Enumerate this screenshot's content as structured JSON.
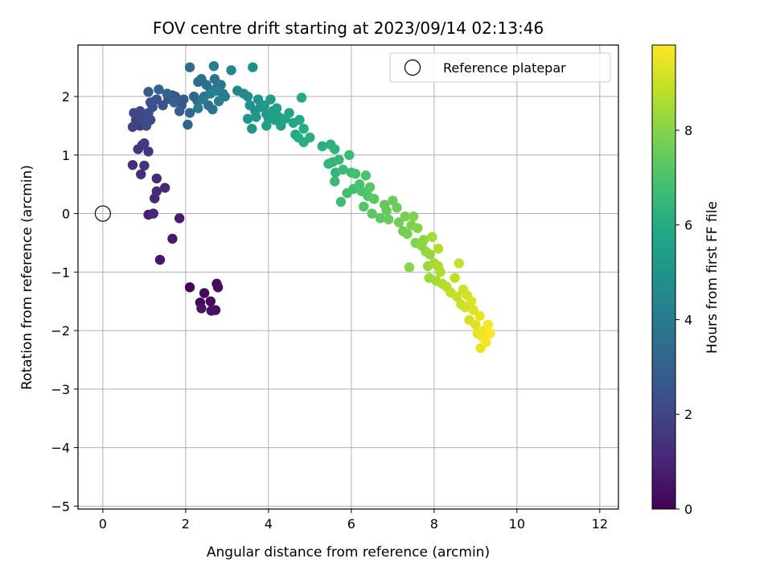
{
  "chart_data": {
    "type": "scatter",
    "title": "FOV centre drift starting at 2023/09/14 02:13:46",
    "xlabel": "Angular distance from reference (arcmin)",
    "ylabel": "Rotation from reference (arcmin)",
    "xlim": [
      -0.6,
      12.45
    ],
    "ylim": [
      -5.05,
      2.88
    ],
    "xticks": [
      0,
      2,
      4,
      6,
      8,
      10,
      12
    ],
    "yticks": [
      -5,
      -4,
      -3,
      -2,
      -1,
      0,
      1,
      2
    ],
    "grid": true,
    "legend": {
      "position": "top-right",
      "entries": [
        "Reference platepar"
      ]
    },
    "reference_point": {
      "x": 0,
      "y": 0,
      "label": "Reference platepar",
      "marker": "open-circle"
    },
    "colorbar": {
      "label": "Hours from first FF file",
      "range": [
        0,
        9.8
      ],
      "ticks": [
        0,
        2,
        4,
        6,
        8
      ],
      "colormap": "viridis"
    },
    "series": [
      {
        "points": [
          [
            2.1,
            -1.26,
            0.1
          ],
          [
            2.35,
            -1.52,
            0.15
          ],
          [
            2.45,
            -1.36,
            0.2
          ],
          [
            2.6,
            -1.5,
            0.25
          ],
          [
            2.75,
            -1.2,
            0.3
          ],
          [
            2.78,
            -1.26,
            0.35
          ],
          [
            2.72,
            -1.65,
            0.4
          ],
          [
            2.62,
            -1.66,
            0.45
          ],
          [
            2.38,
            -1.62,
            0.5
          ],
          [
            1.38,
            -0.79,
            0.6
          ],
          [
            1.68,
            -0.43,
            0.7
          ],
          [
            1.85,
            -0.08,
            0.8
          ],
          [
            1.1,
            -0.02,
            0.9
          ],
          [
            1.22,
            0.0,
            1.0
          ],
          [
            1.25,
            0.26,
            1.1
          ],
          [
            1.3,
            0.38,
            1.15
          ],
          [
            1.5,
            0.44,
            1.2
          ],
          [
            1.3,
            0.6,
            1.25
          ],
          [
            0.92,
            0.67,
            1.3
          ],
          [
            0.72,
            0.83,
            1.35
          ],
          [
            1.0,
            0.82,
            1.4
          ],
          [
            1.1,
            1.06,
            1.45
          ],
          [
            0.85,
            1.1,
            1.5
          ],
          [
            0.95,
            1.17,
            1.55
          ],
          [
            1.0,
            1.2,
            1.6
          ],
          [
            0.9,
            1.5,
            1.7
          ],
          [
            0.8,
            1.6,
            1.8
          ],
          [
            0.72,
            1.48,
            1.9
          ],
          [
            0.75,
            1.72,
            2.0
          ],
          [
            0.9,
            1.75,
            2.05
          ],
          [
            1.02,
            1.66,
            2.1
          ],
          [
            1.15,
            1.6,
            2.15
          ],
          [
            1.05,
            1.5,
            2.2
          ],
          [
            0.95,
            1.62,
            2.25
          ],
          [
            1.1,
            1.72,
            2.3
          ],
          [
            1.2,
            1.82,
            2.35
          ],
          [
            1.15,
            1.9,
            2.4
          ],
          [
            1.3,
            1.95,
            2.45
          ],
          [
            1.45,
            1.85,
            2.5
          ],
          [
            1.58,
            1.96,
            2.55
          ],
          [
            1.68,
            2.02,
            2.6
          ],
          [
            1.75,
            2.0,
            2.65
          ],
          [
            1.9,
            1.85,
            2.7
          ],
          [
            1.95,
            1.95,
            2.75
          ],
          [
            1.85,
            1.75,
            2.8
          ],
          [
            1.1,
            2.08,
            2.9
          ],
          [
            1.35,
            2.12,
            3.0
          ],
          [
            1.55,
            2.05,
            3.05
          ],
          [
            1.72,
            1.9,
            3.1
          ],
          [
            2.05,
            1.52,
            3.15
          ],
          [
            2.1,
            1.72,
            3.2
          ],
          [
            2.2,
            2.0,
            3.25
          ],
          [
            2.3,
            2.25,
            3.3
          ],
          [
            2.28,
            1.93,
            3.35
          ],
          [
            2.1,
            2.5,
            3.4
          ],
          [
            2.38,
            2.3,
            3.45
          ],
          [
            2.5,
            2.2,
            3.5
          ],
          [
            2.6,
            2.1,
            3.55
          ],
          [
            2.45,
            2.0,
            3.6
          ],
          [
            2.55,
            1.85,
            3.65
          ],
          [
            2.65,
            1.78,
            3.7
          ],
          [
            2.7,
            2.3,
            3.75
          ],
          [
            2.75,
            2.15,
            3.8
          ],
          [
            2.85,
            2.2,
            3.85
          ],
          [
            2.9,
            2.05,
            3.9
          ],
          [
            2.3,
            1.8,
            3.95
          ],
          [
            2.4,
            1.95,
            4.0
          ],
          [
            2.68,
            2.52,
            4.05
          ],
          [
            2.95,
            2.0,
            4.1
          ],
          [
            2.8,
            1.92,
            4.15
          ],
          [
            2.6,
            2.05,
            4.2
          ],
          [
            2.75,
            2.1,
            4.25
          ],
          [
            3.1,
            2.45,
            4.4
          ],
          [
            3.25,
            2.1,
            4.5
          ],
          [
            3.4,
            2.05,
            4.6
          ],
          [
            3.5,
            2.0,
            4.7
          ],
          [
            3.62,
            2.5,
            4.8
          ],
          [
            3.55,
            1.85,
            4.85
          ],
          [
            3.68,
            1.75,
            4.9
          ],
          [
            3.75,
            1.95,
            4.95
          ],
          [
            3.8,
            1.82,
            5.0
          ],
          [
            3.5,
            1.62,
            5.05
          ],
          [
            3.7,
            1.65,
            5.1
          ],
          [
            3.6,
            1.45,
            5.15
          ],
          [
            3.9,
            1.85,
            5.2
          ],
          [
            3.95,
            1.7,
            5.25
          ],
          [
            4.0,
            1.62,
            5.3
          ],
          [
            4.05,
            1.95,
            5.35
          ],
          [
            4.1,
            1.75,
            5.4
          ],
          [
            4.15,
            1.6,
            5.45
          ],
          [
            4.2,
            1.8,
            5.5
          ],
          [
            4.25,
            1.65,
            5.55
          ],
          [
            3.95,
            1.5,
            5.6
          ],
          [
            4.3,
            1.5,
            5.65
          ],
          [
            4.4,
            1.62,
            5.7
          ],
          [
            4.5,
            1.72,
            5.75
          ],
          [
            4.6,
            1.55,
            5.8
          ],
          [
            4.65,
            1.35,
            5.85
          ],
          [
            4.75,
            1.6,
            5.9
          ],
          [
            4.8,
            1.98,
            5.95
          ],
          [
            4.85,
            1.45,
            6.0
          ],
          [
            4.72,
            1.3,
            6.05
          ],
          [
            4.85,
            1.22,
            6.1
          ],
          [
            5.0,
            1.3,
            6.15
          ],
          [
            5.3,
            1.15,
            6.2
          ],
          [
            5.5,
            1.18,
            6.25
          ],
          [
            5.6,
            1.1,
            6.3
          ],
          [
            5.55,
            0.88,
            6.35
          ],
          [
            5.45,
            0.85,
            6.4
          ],
          [
            5.62,
            0.7,
            6.45
          ],
          [
            5.7,
            0.92,
            6.5
          ],
          [
            5.6,
            0.55,
            6.55
          ],
          [
            5.8,
            0.75,
            6.6
          ],
          [
            5.95,
            1.0,
            6.65
          ],
          [
            6.0,
            0.7,
            6.7
          ],
          [
            5.75,
            0.2,
            6.75
          ],
          [
            5.9,
            0.35,
            6.8
          ],
          [
            6.05,
            0.42,
            6.85
          ],
          [
            6.1,
            0.68,
            6.9
          ],
          [
            6.2,
            0.5,
            6.95
          ],
          [
            6.25,
            0.38,
            7.0
          ],
          [
            6.35,
            0.65,
            7.05
          ],
          [
            6.4,
            0.3,
            7.1
          ],
          [
            6.3,
            0.12,
            7.15
          ],
          [
            6.45,
            0.45,
            7.2
          ],
          [
            6.55,
            0.25,
            7.25
          ],
          [
            6.5,
            0.0,
            7.3
          ],
          [
            6.7,
            -0.08,
            7.35
          ],
          [
            6.8,
            0.15,
            7.4
          ],
          [
            6.85,
            0.05,
            7.45
          ],
          [
            6.9,
            -0.1,
            7.5
          ],
          [
            7.0,
            0.22,
            7.55
          ],
          [
            7.1,
            0.1,
            7.6
          ],
          [
            7.15,
            -0.15,
            7.65
          ],
          [
            7.25,
            -0.3,
            7.7
          ],
          [
            7.3,
            -0.05,
            7.75
          ],
          [
            7.35,
            -0.35,
            7.8
          ],
          [
            7.45,
            -0.2,
            7.85
          ],
          [
            7.5,
            -0.05,
            7.9
          ],
          [
            7.55,
            -0.5,
            7.95
          ],
          [
            7.6,
            -0.25,
            8.0
          ],
          [
            7.4,
            -0.92,
            8.05
          ],
          [
            7.7,
            -0.55,
            8.1
          ],
          [
            7.75,
            -0.45,
            8.15
          ],
          [
            7.8,
            -0.65,
            8.2
          ],
          [
            7.9,
            -0.7,
            8.25
          ],
          [
            7.85,
            -0.9,
            8.3
          ],
          [
            7.88,
            -1.1,
            8.35
          ],
          [
            7.95,
            -0.4,
            8.4
          ],
          [
            8.0,
            -0.85,
            8.45
          ],
          [
            8.05,
            -1.15,
            8.5
          ],
          [
            8.1,
            -0.9,
            8.55
          ],
          [
            8.15,
            -1.0,
            8.6
          ],
          [
            8.2,
            -1.2,
            8.65
          ],
          [
            8.1,
            -0.6,
            8.7
          ],
          [
            8.3,
            -1.25,
            8.75
          ],
          [
            8.4,
            -1.35,
            8.8
          ],
          [
            8.5,
            -1.1,
            8.85
          ],
          [
            8.55,
            -1.42,
            8.9
          ],
          [
            8.6,
            -0.85,
            8.95
          ],
          [
            8.65,
            -1.55,
            9.0
          ],
          [
            8.7,
            -1.3,
            9.05
          ],
          [
            8.75,
            -1.6,
            9.1
          ],
          [
            8.8,
            -1.4,
            9.15
          ],
          [
            8.85,
            -1.82,
            9.2
          ],
          [
            8.9,
            -1.5,
            9.25
          ],
          [
            8.95,
            -1.65,
            9.3
          ],
          [
            9.0,
            -1.9,
            9.35
          ],
          [
            9.05,
            -2.05,
            9.4
          ],
          [
            9.1,
            -1.75,
            9.45
          ],
          [
            9.12,
            -2.3,
            9.5
          ],
          [
            9.15,
            -2.1,
            9.55
          ],
          [
            9.2,
            -2.0,
            9.6
          ],
          [
            9.25,
            -2.2,
            9.65
          ],
          [
            9.3,
            -1.9,
            9.7
          ],
          [
            9.35,
            -2.05,
            9.75
          ]
        ]
      }
    ]
  }
}
